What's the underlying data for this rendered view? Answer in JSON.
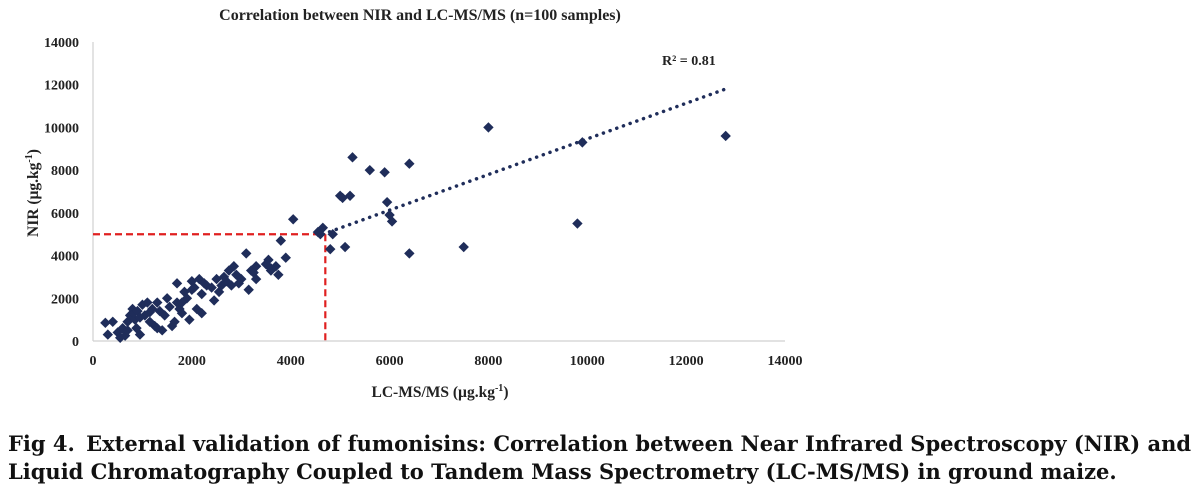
{
  "caption": {
    "prefix": "Fig 4.",
    "text": "External validation of fumonisins: Correlation between Near Infrared Spectroscopy (NIR) and Liquid Chromatography Coupled to Tandem Mass Spectrometry (LC-MS/MS) in ground maize."
  },
  "chart_data": {
    "type": "scatter",
    "title": "Correlation between NIR and LC-MS/MS (n=100 samples)",
    "xlabel": "LC-MS/MS (µg.kg",
    "ylabel": "NIR (µg.kg",
    "unit_superscript": "-1",
    "unit_close": ")",
    "xlim": [
      0,
      14000
    ],
    "ylim": [
      0,
      14000
    ],
    "xticks": [
      "0",
      "2000",
      "4000",
      "6000",
      "8000",
      "10000",
      "12000",
      "14000"
    ],
    "yticks": [
      "0",
      "2000",
      "4000",
      "6000",
      "8000",
      "10000",
      "12000",
      "14000"
    ],
    "grid": false,
    "legend": "none",
    "r2_label": "R² = 0.81",
    "trendline": {
      "style": "dotted",
      "color": "#1f2d5a",
      "x": [
        4650,
        12800
      ],
      "y": [
        5000,
        11800
      ]
    },
    "reference_lines": {
      "color": "#e02020",
      "style": "dashed",
      "x": 4700,
      "y": 5000
    },
    "marker": {
      "shape": "diamond",
      "color": "#1f2d5a"
    },
    "points": [
      [
        250,
        850
      ],
      [
        300,
        300
      ],
      [
        400,
        900
      ],
      [
        500,
        400
      ],
      [
        550,
        150
      ],
      [
        600,
        600
      ],
      [
        650,
        250
      ],
      [
        700,
        900
      ],
      [
        750,
        1200
      ],
      [
        800,
        1500
      ],
      [
        820,
        1300
      ],
      [
        850,
        1000
      ],
      [
        880,
        600
      ],
      [
        900,
        1400
      ],
      [
        950,
        300
      ],
      [
        1000,
        1700
      ],
      [
        1050,
        1200
      ],
      [
        1100,
        1800
      ],
      [
        1150,
        900
      ],
      [
        1200,
        1500
      ],
      [
        1250,
        700
      ],
      [
        1300,
        1800
      ],
      [
        1350,
        1400
      ],
      [
        1400,
        500
      ],
      [
        1450,
        1200
      ],
      [
        1500,
        2000
      ],
      [
        1550,
        1600
      ],
      [
        1600,
        700
      ],
      [
        1650,
        900
      ],
      [
        1700,
        2700
      ],
      [
        1750,
        1500
      ],
      [
        1800,
        1300
      ],
      [
        1850,
        2300
      ],
      [
        1900,
        2000
      ],
      [
        1950,
        1000
      ],
      [
        2000,
        2800
      ],
      [
        2050,
        2500
      ],
      [
        2100,
        1500
      ],
      [
        2150,
        2900
      ],
      [
        2200,
        2200
      ],
      [
        2250,
        2700
      ],
      [
        2300,
        2600
      ],
      [
        2400,
        2500
      ],
      [
        2450,
        1900
      ],
      [
        2500,
        2900
      ],
      [
        2550,
        2300
      ],
      [
        2600,
        2600
      ],
      [
        2650,
        3000
      ],
      [
        2700,
        2800
      ],
      [
        2750,
        3300
      ],
      [
        2800,
        2600
      ],
      [
        2850,
        3500
      ],
      [
        2900,
        3100
      ],
      [
        3000,
        2900
      ],
      [
        3100,
        4100
      ],
      [
        3150,
        2400
      ],
      [
        3200,
        3300
      ],
      [
        3250,
        3200
      ],
      [
        3300,
        2900
      ],
      [
        3500,
        3600
      ],
      [
        3550,
        3800
      ],
      [
        3600,
        3300
      ],
      [
        3700,
        3500
      ],
      [
        3750,
        3100
      ],
      [
        3800,
        4700
      ],
      [
        3900,
        3900
      ],
      [
        4050,
        5700
      ],
      [
        4600,
        5000
      ],
      [
        4650,
        5300
      ],
      [
        4800,
        4300
      ],
      [
        4850,
        5000
      ],
      [
        5000,
        6800
      ],
      [
        5100,
        4400
      ],
      [
        5200,
        6800
      ],
      [
        5250,
        8600
      ],
      [
        5600,
        8000
      ],
      [
        5900,
        7900
      ],
      [
        5950,
        6500
      ],
      [
        6050,
        5600
      ],
      [
        6400,
        8300
      ],
      [
        6400,
        4100
      ],
      [
        7500,
        4400
      ],
      [
        8000,
        10000
      ],
      [
        9800,
        5500
      ],
      [
        9900,
        9300
      ],
      [
        12800,
        9600
      ],
      [
        950,
        1100
      ],
      [
        1150,
        1350
      ],
      [
        1700,
        1800
      ],
      [
        2200,
        1300
      ],
      [
        3300,
        3500
      ],
      [
        3600,
        3400
      ],
      [
        700,
        500
      ],
      [
        1300,
        600
      ],
      [
        1800,
        1800
      ],
      [
        2950,
        2700
      ],
      [
        4550,
        5100
      ],
      [
        5050,
        6700
      ],
      [
        6000,
        5900
      ],
      [
        2000,
        2400
      ]
    ]
  }
}
